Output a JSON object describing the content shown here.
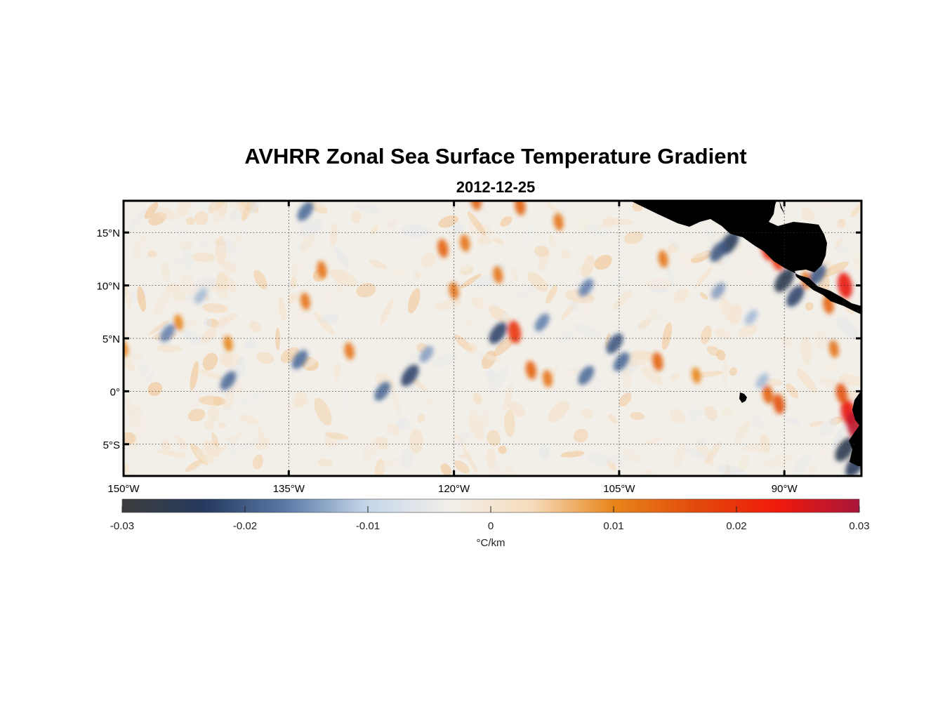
{
  "chart_data": {
    "type": "heatmap",
    "title": "AVHRR Zonal Sea Surface Temperature Gradient",
    "subtitle": "2012-12-25",
    "xlim": [
      -150,
      -83
    ],
    "ylim": [
      -8,
      18
    ],
    "x_ticks": [
      {
        "value": -150,
        "label": "150°W"
      },
      {
        "value": -135,
        "label": "135°W"
      },
      {
        "value": -120,
        "label": "120°W"
      },
      {
        "value": -105,
        "label": "105°W"
      },
      {
        "value": -90,
        "label": "90°W"
      }
    ],
    "y_ticks": [
      {
        "value": 15,
        "label": "15°N"
      },
      {
        "value": 10,
        "label": "10°N"
      },
      {
        "value": 5,
        "label": "5°N"
      },
      {
        "value": 0,
        "label": "0°"
      },
      {
        "value": -5,
        "label": "5°S"
      }
    ],
    "grid": true,
    "colorbar": {
      "min": -0.03,
      "max": 0.03,
      "ticks": [
        -0.03,
        -0.02,
        -0.01,
        0,
        0.01,
        0.02,
        0.03
      ],
      "tick_labels": [
        "-0.03",
        "-0.02",
        "-0.01",
        "0",
        "0.01",
        "0.02",
        "0.03"
      ],
      "label": "°C/km",
      "placement": "bottom",
      "colors": [
        "#3d3d3d",
        "#253a5e",
        "#5b7aa8",
        "#c6d7ea",
        "#f2efe9",
        "#f6dcbc",
        "#e8851a",
        "#e24b0c",
        "#f01a0a",
        "#a8163a"
      ]
    },
    "land_color": "#808080",
    "features": [
      {
        "lon": -91.5,
        "lat": 13.5,
        "value": 0.022
      },
      {
        "lon": -92.0,
        "lat": 14.5,
        "value": 0.018
      },
      {
        "lon": -90.6,
        "lat": 12.5,
        "value": 0.02
      },
      {
        "lon": -84.5,
        "lat": 10.0,
        "value": 0.024
      },
      {
        "lon": -86.0,
        "lat": 8.2,
        "value": 0.014
      },
      {
        "lon": -88.0,
        "lat": 10.5,
        "value": 0.012
      },
      {
        "lon": -84.2,
        "lat": -2.0,
        "value": 0.024
      },
      {
        "lon": -83.6,
        "lat": -3.2,
        "value": 0.028
      },
      {
        "lon": -84.8,
        "lat": -0.2,
        "value": 0.016
      },
      {
        "lon": -95.0,
        "lat": 14.0,
        "value": -0.024
      },
      {
        "lon": -96.0,
        "lat": 13.2,
        "value": -0.02
      },
      {
        "lon": -90.0,
        "lat": 10.5,
        "value": -0.026
      },
      {
        "lon": -89.0,
        "lat": 9.0,
        "value": -0.022
      },
      {
        "lon": -87.0,
        "lat": 11.0,
        "value": -0.02
      },
      {
        "lon": -84.5,
        "lat": -5.5,
        "value": -0.026
      },
      {
        "lon": -83.6,
        "lat": -7.0,
        "value": -0.024
      },
      {
        "lon": -104.8,
        "lat": 2.8,
        "value": -0.018
      },
      {
        "lon": -105.4,
        "lat": 4.5,
        "value": -0.02
      },
      {
        "lon": -108.0,
        "lat": 1.5,
        "value": -0.018
      },
      {
        "lon": -112.0,
        "lat": 6.5,
        "value": -0.016
      },
      {
        "lon": -116.0,
        "lat": 5.5,
        "value": -0.022
      },
      {
        "lon": -124.0,
        "lat": 1.5,
        "value": -0.022
      },
      {
        "lon": -126.5,
        "lat": 0.0,
        "value": -0.018
      },
      {
        "lon": -134.0,
        "lat": 3.0,
        "value": -0.018
      },
      {
        "lon": -140.5,
        "lat": 1.0,
        "value": -0.018
      },
      {
        "lon": -146.0,
        "lat": 5.5,
        "value": -0.016
      },
      {
        "lon": -143.0,
        "lat": 9.0,
        "value": -0.012
      },
      {
        "lon": -133.5,
        "lat": 17.0,
        "value": -0.018
      },
      {
        "lon": -108.0,
        "lat": 9.8,
        "value": -0.016
      },
      {
        "lon": -96.0,
        "lat": 9.5,
        "value": -0.014
      },
      {
        "lon": -93.0,
        "lat": 7.0,
        "value": -0.012
      },
      {
        "lon": -118.0,
        "lat": 18.0,
        "value": 0.014
      },
      {
        "lon": -119.0,
        "lat": 14.0,
        "value": 0.012
      },
      {
        "lon": -121.0,
        "lat": 13.5,
        "value": 0.014
      },
      {
        "lon": -116.0,
        "lat": 11.0,
        "value": 0.012
      },
      {
        "lon": -114.0,
        "lat": 17.5,
        "value": 0.014
      },
      {
        "lon": -110.5,
        "lat": 16.0,
        "value": 0.012
      },
      {
        "lon": -114.5,
        "lat": 5.6,
        "value": 0.02
      },
      {
        "lon": -113.0,
        "lat": 2.0,
        "value": 0.014
      },
      {
        "lon": -111.5,
        "lat": 1.2,
        "value": 0.012
      },
      {
        "lon": -120.0,
        "lat": 9.5,
        "value": 0.012
      },
      {
        "lon": -133.5,
        "lat": 8.5,
        "value": 0.012
      },
      {
        "lon": -132.0,
        "lat": 11.5,
        "value": 0.012
      },
      {
        "lon": -129.5,
        "lat": 3.8,
        "value": 0.012
      },
      {
        "lon": -140.5,
        "lat": 4.5,
        "value": 0.01
      },
      {
        "lon": -145.0,
        "lat": 6.5,
        "value": 0.01
      },
      {
        "lon": -101.5,
        "lat": 2.8,
        "value": 0.014
      },
      {
        "lon": -98.0,
        "lat": 1.5,
        "value": 0.01
      },
      {
        "lon": -101.0,
        "lat": 12.5,
        "value": 0.012
      },
      {
        "lon": -91.5,
        "lat": -0.3,
        "value": 0.014
      },
      {
        "lon": -90.5,
        "lat": -1.2,
        "value": 0.016
      },
      {
        "lon": -92.0,
        "lat": 1.0,
        "value": -0.012
      },
      {
        "lon": -85.5,
        "lat": 4.0,
        "value": 0.012
      },
      {
        "lon": -122.5,
        "lat": 3.5,
        "value": -0.014
      },
      {
        "lon": -150.0,
        "lat": 4.0,
        "value": 0.01
      }
    ]
  }
}
